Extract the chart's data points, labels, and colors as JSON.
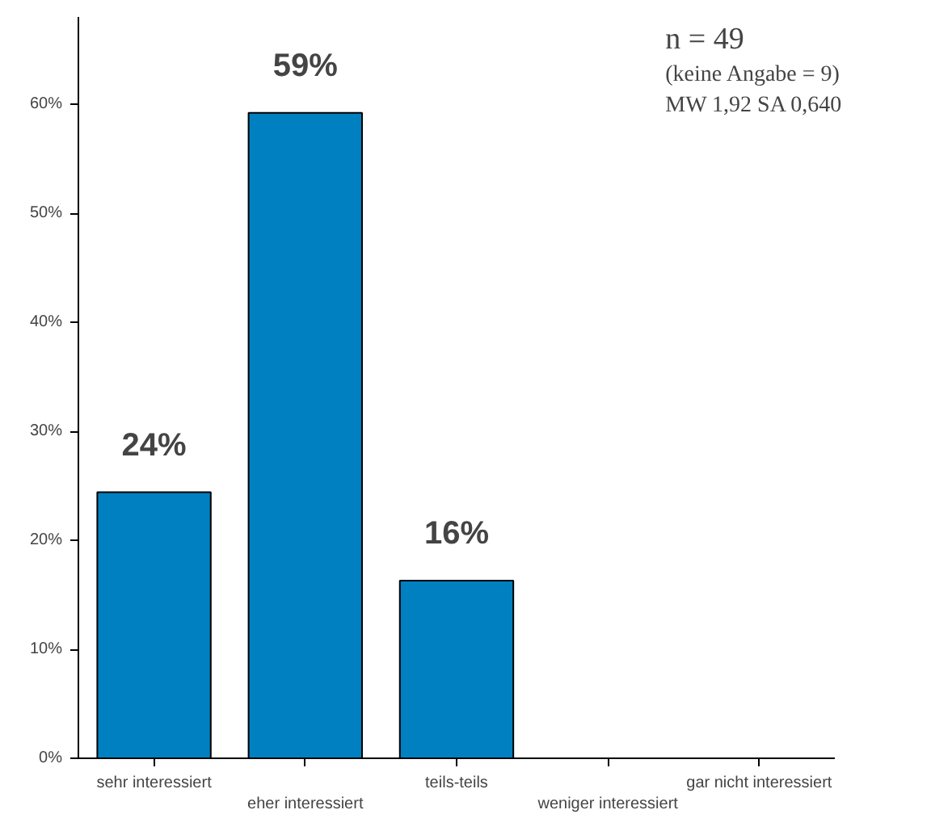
{
  "chart_data": {
    "type": "bar",
    "categories": [
      "sehr interessiert",
      "eher interessiert",
      "teils-teils",
      "weniger interessiert",
      "gar nicht interessiert"
    ],
    "values": [
      24.4,
      59.2,
      16.3,
      0,
      0
    ],
    "value_labels": [
      "24%",
      "59%",
      "16%",
      null,
      null
    ],
    "color": "#0080c0",
    "ylim": [
      0,
      68
    ],
    "yticks": [
      {
        "value": 0,
        "label": "0%"
      },
      {
        "value": 10,
        "label": "10%"
      },
      {
        "value": 20,
        "label": "20%"
      },
      {
        "value": 30,
        "label": "30%"
      },
      {
        "value": 40,
        "label": "40%"
      },
      {
        "value": 50,
        "label": "50%"
      },
      {
        "value": 60,
        "label": "60%"
      }
    ],
    "grid": false,
    "annotations": [
      "n = 49",
      "(keine Angabe = 9)",
      "MW 1,92 SA 0,640"
    ]
  }
}
